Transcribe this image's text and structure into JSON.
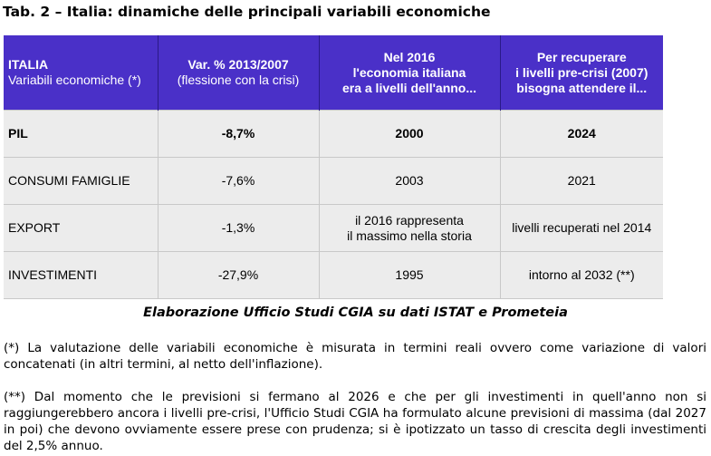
{
  "title": "Tab. 2 – Italia: dinamiche delle principali variabili economiche",
  "table": {
    "headers": [
      {
        "main": "ITALIA",
        "sub": "Variabili economiche (*)"
      },
      {
        "main": "Var. % 2013/2007",
        "sub": "(flessione con la crisi)"
      },
      {
        "lines": [
          "Nel 2016",
          "l'economia italiana",
          "era a livelli dell'anno..."
        ]
      },
      {
        "lines": [
          "Per recuperare",
          "i livelli pre-crisi (2007)",
          "bisogna attendere il..."
        ]
      }
    ],
    "rows": [
      {
        "cells": [
          "PIL",
          "-8,7%",
          "2000",
          "2024"
        ]
      },
      {
        "cells": [
          "CONSUMI FAMIGLIE",
          "-7,6%",
          "2003",
          "2021"
        ]
      },
      {
        "cells": [
          "EXPORT",
          "-1,3%",
          "il 2016 rappresenta",
          "livelli recuperati nel 2014"
        ],
        "cell3_line2": "il massimo nella storia"
      },
      {
        "cells": [
          "INVESTIMENTI",
          "-27,9%",
          "1995",
          "intorno al 2032 (**)"
        ]
      }
    ]
  },
  "caption": "Elaborazione Ufficio Studi CGIA su dati ISTAT e Prometeia",
  "notes": [
    "(*) La valutazione delle variabili economiche è misurata in termini reali ovvero come variazione di valori concatenati (in altri termini, al netto dell'inflazione).",
    "(**) Dal momento che le previsioni si fermano al 2026 e che per gli investimenti in quell'anno non si raggiungerebbero ancora i livelli pre-crisi, l'Ufficio Studi CGIA ha formulato alcune previsioni di massima (dal 2027 in poi) che devono ovviamente essere prese con prudenza; si è ipotizzato un tasso di crescita degli investimenti del 2,5% annuo."
  ]
}
